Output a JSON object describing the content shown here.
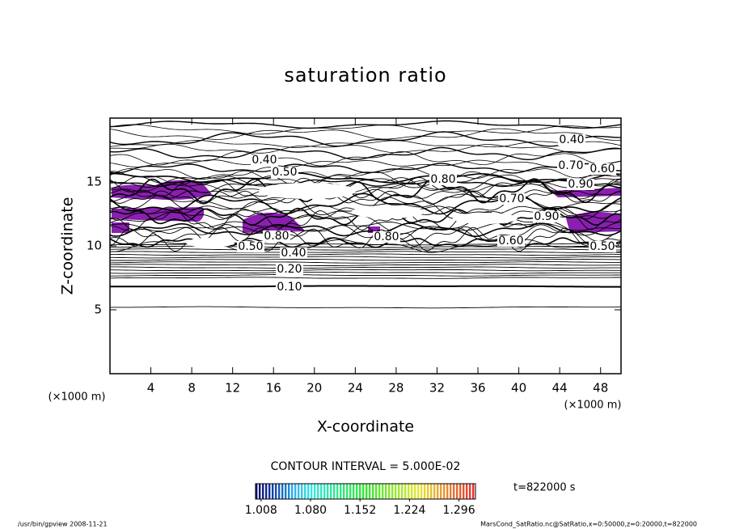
{
  "chart_data": {
    "type": "contour",
    "title": "saturation ratio",
    "xlabel": "X-coordinate",
    "ylabel": "Z-coordinate",
    "x_unit": "(×1000 m)",
    "y_unit": "(×1000 m)",
    "xlim": [
      0,
      50
    ],
    "xticks": [
      4,
      8,
      12,
      16,
      20,
      24,
      28,
      32,
      36,
      40,
      44,
      48
    ],
    "ylim": [
      0,
      20
    ],
    "yticks": [
      5,
      10,
      15
    ],
    "contour_labels": [
      {
        "value": 0.1,
        "label": "0.10"
      },
      {
        "value": 0.2,
        "label": "0.20"
      },
      {
        "value": 0.4,
        "label": "0.40"
      },
      {
        "value": 0.5,
        "label": "0.50"
      },
      {
        "value": 0.6,
        "label": "0.60"
      },
      {
        "value": 0.8,
        "label": "0.80"
      },
      {
        "value": 0.4,
        "label": "0.40"
      },
      {
        "value": 0.5,
        "label": "0.50"
      },
      {
        "value": 0.4,
        "label": "0.40"
      },
      {
        "value": 0.7,
        "label": "0.70"
      },
      {
        "value": 0.6,
        "label": "0.60"
      },
      {
        "value": 0.9,
        "label": "0.90"
      },
      {
        "value": 0.8,
        "label": "0.80"
      },
      {
        "value": 0.7,
        "label": "0.70"
      },
      {
        "value": 0.9,
        "label": "0.90"
      },
      {
        "value": 0.8,
        "label": "0.80"
      },
      {
        "value": 0.5,
        "label": "0.50"
      }
    ],
    "contour_interval": "CONTOUR INTERVAL = 5.000E-02",
    "time_label": "t=822000 s",
    "colorbar_lim": [
      1.0,
      1.32
    ],
    "colorbar_ticks": [
      {
        "value": 1.008,
        "label": "1.008"
      },
      {
        "value": 1.08,
        "label": "1.080"
      },
      {
        "value": 1.152,
        "label": "1.152"
      },
      {
        "value": 1.224,
        "label": "1.224"
      },
      {
        "value": 1.296,
        "label": "1.296"
      }
    ],
    "footer_left": "/usr/bin/gpview   2008-11-21",
    "footer_right": "MarsCond_SatRatio.nc@SatRatio,x=0:50000,z=0:20000,t=822000"
  }
}
